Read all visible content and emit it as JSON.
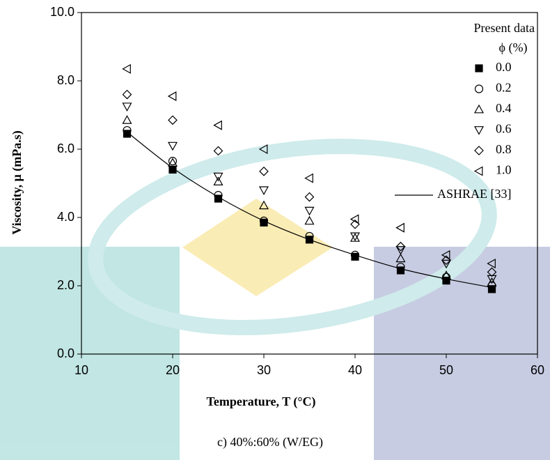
{
  "chart_data": {
    "type": "scatter",
    "x_label": "Temperature, T (°C)",
    "y_label": "Viscosity, μ (mPa.s)",
    "caption": "c)   40%:60% (W/EG)",
    "legend_title": "Present data",
    "legend_subtitle": "ϕ (%)",
    "x": [
      15,
      20,
      25,
      30,
      35,
      40,
      45,
      50,
      55
    ],
    "xlim": [
      10,
      60
    ],
    "xticks": [
      10,
      20,
      30,
      40,
      50,
      60
    ],
    "ylim": [
      0,
      10
    ],
    "yticks": [
      {
        "value": 0,
        "label": "0.0"
      },
      {
        "value": 2,
        "label": "2.0"
      },
      {
        "value": 4,
        "label": "4.0"
      },
      {
        "value": 6,
        "label": "6.0"
      },
      {
        "value": 8,
        "label": "8.0"
      },
      {
        "value": 10,
        "label": "10.0"
      }
    ],
    "grid": false,
    "legend_position": "upper right",
    "series": [
      {
        "name": "0.0",
        "marker": "square-filled",
        "color": "#000000",
        "values": [
          6.45,
          5.4,
          4.55,
          3.85,
          3.35,
          2.85,
          2.45,
          2.15,
          1.9
        ]
      },
      {
        "name": "0.2",
        "marker": "circle",
        "color": "#000000",
        "values": [
          6.55,
          5.65,
          4.65,
          3.9,
          3.45,
          2.9,
          2.55,
          2.25,
          2.0
        ]
      },
      {
        "name": "0.4",
        "marker": "triangle-up",
        "color": "#000000",
        "values": [
          6.85,
          5.6,
          5.05,
          4.35,
          3.9,
          3.4,
          2.8,
          2.3,
          2.1
        ]
      },
      {
        "name": "0.6",
        "marker": "triangle-down",
        "color": "#000000",
        "values": [
          7.25,
          6.1,
          5.2,
          4.8,
          4.2,
          3.45,
          3.05,
          2.65,
          2.2
        ]
      },
      {
        "name": "0.8",
        "marker": "diamond",
        "color": "#000000",
        "values": [
          7.6,
          6.85,
          5.95,
          5.35,
          4.6,
          3.8,
          3.15,
          2.75,
          2.4
        ]
      },
      {
        "name": "1.0",
        "marker": "triangle-left",
        "color": "#000000",
        "values": [
          8.35,
          7.55,
          6.7,
          6.0,
          5.15,
          3.95,
          3.7,
          2.9,
          2.65
        ]
      },
      {
        "name": "ASHRAE [33]",
        "marker": "line",
        "color": "#000000",
        "values": [
          6.5,
          5.45,
          4.6,
          3.9,
          3.35,
          2.9,
          2.5,
          2.2,
          1.95
        ]
      }
    ]
  }
}
